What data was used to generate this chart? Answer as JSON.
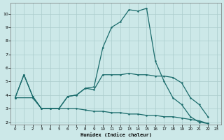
{
  "xlabel": "Humidex (Indice chaleur)",
  "bg_color": "#cce8e8",
  "grid_color": "#aacccc",
  "line_color": "#1a6b6b",
  "xlim": [
    -0.5,
    23.5
  ],
  "ylim": [
    1.8,
    10.8
  ],
  "xticks": [
    0,
    1,
    2,
    3,
    4,
    5,
    6,
    7,
    8,
    9,
    10,
    11,
    12,
    13,
    14,
    15,
    16,
    17,
    18,
    19,
    20,
    21,
    22,
    23
  ],
  "yticks": [
    2,
    3,
    4,
    5,
    6,
    7,
    8,
    9,
    10
  ],
  "peak_x": [
    0,
    1,
    2,
    3,
    4,
    5,
    6,
    7,
    8,
    9,
    10,
    11,
    12,
    13,
    14,
    15,
    16,
    17,
    18,
    19,
    20,
    21,
    22
  ],
  "peak_y": [
    3.8,
    5.5,
    3.9,
    3.0,
    3.0,
    3.0,
    3.9,
    4.0,
    4.5,
    4.6,
    7.5,
    9.0,
    9.4,
    10.3,
    10.2,
    10.4,
    6.5,
    5.0,
    3.8,
    3.3,
    2.4,
    2.0,
    1.9
  ],
  "mid_x": [
    0,
    1,
    2,
    3,
    4,
    5,
    6,
    7,
    8,
    9,
    10,
    11,
    12,
    13,
    14,
    15,
    16,
    17,
    18,
    19,
    20,
    21,
    22
  ],
  "mid_y": [
    3.8,
    5.5,
    3.9,
    3.0,
    3.0,
    3.0,
    3.9,
    4.0,
    4.5,
    4.4,
    5.5,
    5.5,
    5.5,
    5.6,
    5.5,
    5.5,
    5.4,
    5.4,
    5.3,
    4.9,
    3.8,
    3.3,
    2.4
  ],
  "bot_x": [
    0,
    2,
    3,
    4,
    5,
    6,
    7,
    8,
    9,
    10,
    11,
    12,
    13,
    14,
    15,
    16,
    17,
    18,
    19,
    20,
    21,
    22
  ],
  "bot_y": [
    3.8,
    3.8,
    3.0,
    3.0,
    3.0,
    3.0,
    3.0,
    2.9,
    2.8,
    2.8,
    2.7,
    2.7,
    2.6,
    2.6,
    2.5,
    2.5,
    2.4,
    2.4,
    2.3,
    2.2,
    2.1,
    1.9
  ]
}
